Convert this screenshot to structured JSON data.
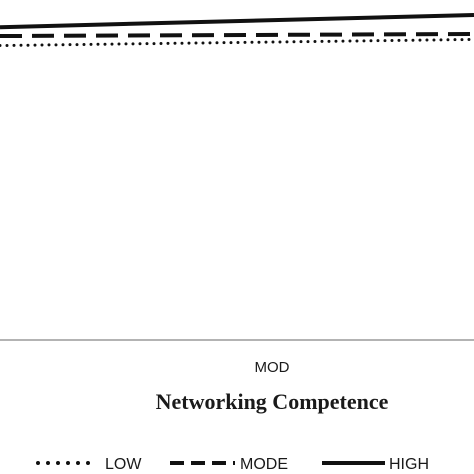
{
  "chart_data": {
    "type": "line",
    "xlabel": "Networking Competence",
    "categories": [
      "MOD"
    ],
    "series": [
      {
        "name": "LOW",
        "style": "dotted",
        "color": "#111111",
        "start": 4.33,
        "end": 4.42
      },
      {
        "name": "MODE",
        "style": "dashed",
        "color": "#111111",
        "start": 4.47,
        "end": 4.5
      },
      {
        "name": "HIGH",
        "style": "solid",
        "color": "#111111",
        "start": 4.6,
        "end": 4.78
      }
    ],
    "ylim": [
      0,
      5
    ],
    "legend_position": "bottom",
    "grid": false
  }
}
